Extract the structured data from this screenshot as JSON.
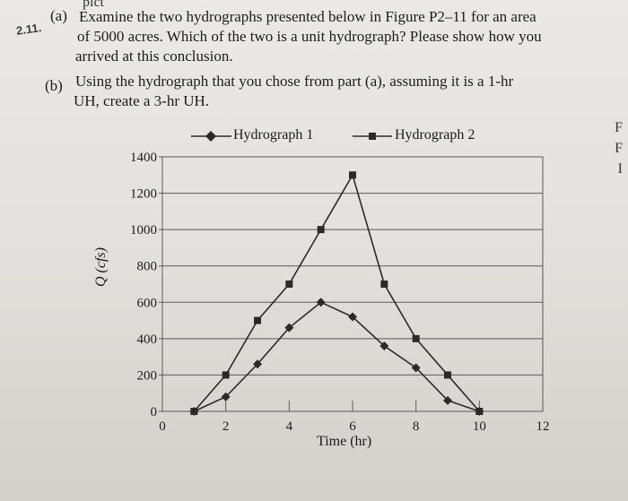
{
  "problem": {
    "number": "2.11.",
    "part_a_label": "(a)",
    "part_a_lines": [
      "Examine the two hydrographs presented below in Figure P2–11 for an area",
      "of 5000 acres. Which of the two is a unit hydrograph? Please show how you",
      "arrived at this conclusion."
    ],
    "part_b_label": "(b)",
    "part_b_lines": [
      "Using the hydrograph that you chose from part (a), assuming it is a 1-hr",
      "UH, create a 3-hr UH."
    ],
    "top_fragment": "pict"
  },
  "edge_letters": [
    "F",
    "F",
    "I"
  ],
  "colors": {
    "line": "#2a2a2a",
    "grid": "#5a5a5a",
    "page": "#e6e4e0"
  },
  "chart_data": {
    "type": "line",
    "title": "",
    "xlabel": "Time (hr)",
    "ylabel": "Q (cfs)",
    "xlim": [
      0,
      12
    ],
    "ylim": [
      0,
      1400
    ],
    "xticks": [
      0,
      2,
      4,
      6,
      8,
      10,
      12
    ],
    "yticks": [
      0,
      200,
      400,
      600,
      800,
      1000,
      1200,
      1400
    ],
    "grid": "horizontal",
    "legend_position": "top",
    "series": [
      {
        "name": "Hydrograph 1",
        "marker": "diamond",
        "x": [
          1,
          2,
          3,
          4,
          5,
          6,
          7,
          8,
          9,
          10
        ],
        "y": [
          0,
          80,
          260,
          460,
          600,
          520,
          360,
          240,
          60,
          0
        ]
      },
      {
        "name": "Hydrograph 2",
        "marker": "square",
        "x": [
          1,
          2,
          3,
          4,
          5,
          6,
          7,
          8,
          9,
          10
        ],
        "y": [
          0,
          200,
          500,
          700,
          1000,
          1300,
          700,
          400,
          200,
          0
        ]
      }
    ]
  }
}
